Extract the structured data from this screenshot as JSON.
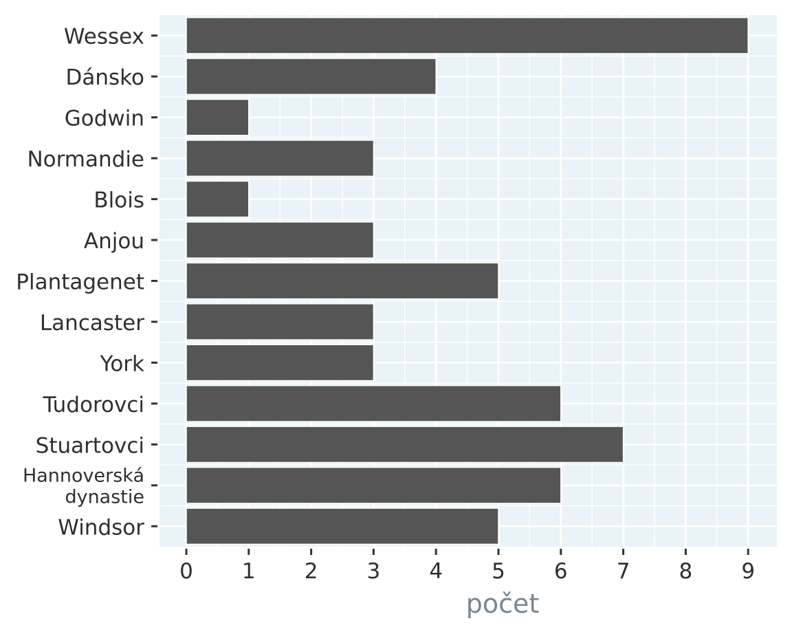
{
  "colors": {
    "panel_background": "#eaf3f7",
    "grid": "#ffffff",
    "bar_fill": "#555555",
    "bar_outline": "#ffffff",
    "tick_label": "#2f2f2f",
    "axis_title": "#7a8590"
  },
  "chart_data": {
    "type": "bar",
    "orientation": "horizontal",
    "categories": [
      "Wessex",
      "Dánsko",
      "Godwin",
      "Normandie",
      "Blois",
      "Anjou",
      "Plantagenet",
      "Lancaster",
      "York",
      "Tudorovci",
      "Stuartovci",
      "Hannoverská dynastie",
      "Windsor"
    ],
    "category_label_lines": [
      [
        "Wessex"
      ],
      [
        "Dánsko"
      ],
      [
        "Godwin"
      ],
      [
        "Normandie"
      ],
      [
        "Blois"
      ],
      [
        "Anjou"
      ],
      [
        "Plantagenet"
      ],
      [
        "Lancaster"
      ],
      [
        "York"
      ],
      [
        "Tudorovci"
      ],
      [
        "Stuartovci"
      ],
      [
        "Hannoverská",
        "dynastie"
      ],
      [
        "Windsor"
      ]
    ],
    "values": [
      9,
      4,
      1,
      3,
      1,
      3,
      5,
      3,
      3,
      6,
      7,
      6,
      5
    ],
    "title": "",
    "xlabel": "počet",
    "ylabel": "",
    "xlim": [
      0,
      9.45
    ],
    "x_ticks": [
      0,
      1,
      2,
      3,
      4,
      5,
      6,
      7,
      8,
      9
    ],
    "grid": true,
    "legend": "none"
  }
}
